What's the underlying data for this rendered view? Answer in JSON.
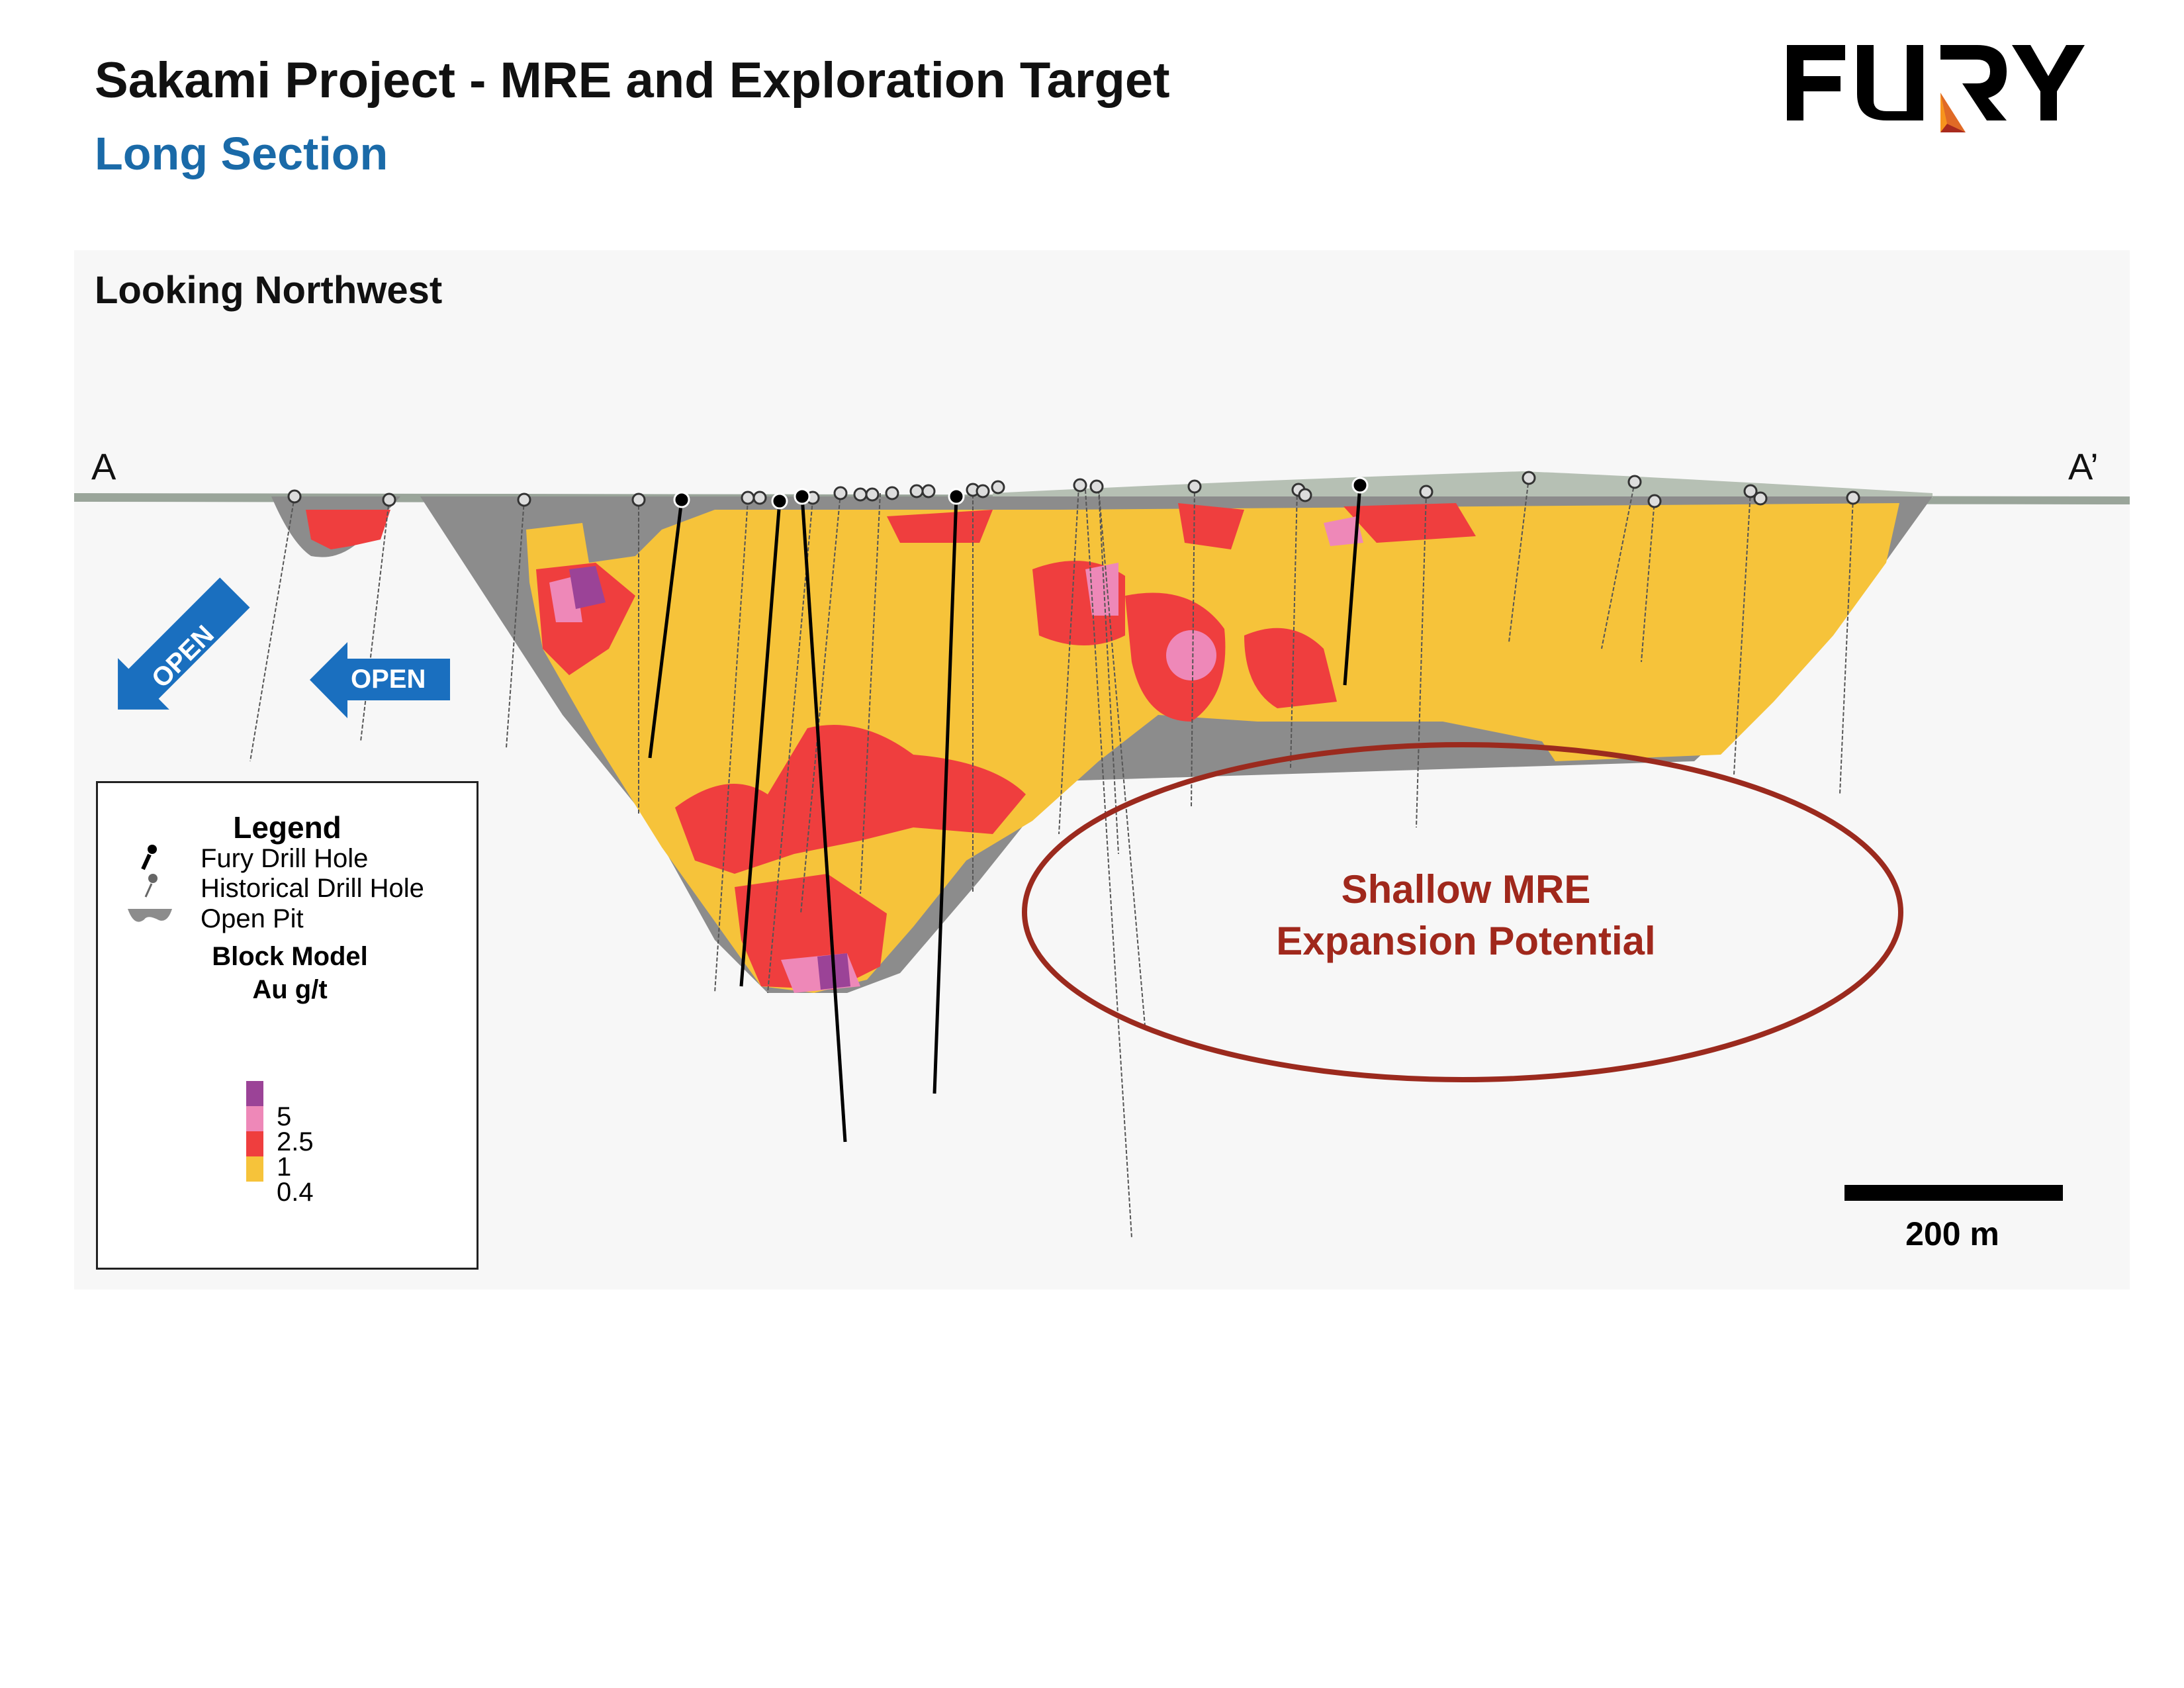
{
  "header": {
    "title": "Sakami Project - MRE and Exploration Target",
    "subtitle": "Long Section"
  },
  "logo": {
    "text": "FURY",
    "colors": [
      "#000000",
      "#f7941d",
      "#e06a26",
      "#a82a1e"
    ]
  },
  "section": {
    "view_label": "Looking Northwest",
    "start_label": "A",
    "end_label": "A’",
    "open_labels": [
      "OPEN",
      "OPEN"
    ]
  },
  "annotation": {
    "line1": "Shallow MRE",
    "line2": "Expansion Potential",
    "color": "#9b2a1e"
  },
  "scale_bar": {
    "label": "200 m"
  },
  "legend": {
    "title": "Legend",
    "items": [
      {
        "label": "Fury Drill Hole",
        "icon": "fury-drill-hole-icon"
      },
      {
        "label": "Historical Drill Hole",
        "icon": "historical-drill-hole-icon"
      },
      {
        "label": "Open Pit",
        "icon": "open-pit-icon"
      }
    ],
    "block_model_title": "Block Model",
    "block_model_unit": "Au g/t",
    "grades": [
      {
        "value": "5",
        "color": "#9b4397"
      },
      {
        "value": "2.5",
        "color": "#ee88b8"
      },
      {
        "value": "1",
        "color": "#ef3e3e"
      },
      {
        "value": "0.4",
        "color": "#f6c33a"
      }
    ]
  }
}
